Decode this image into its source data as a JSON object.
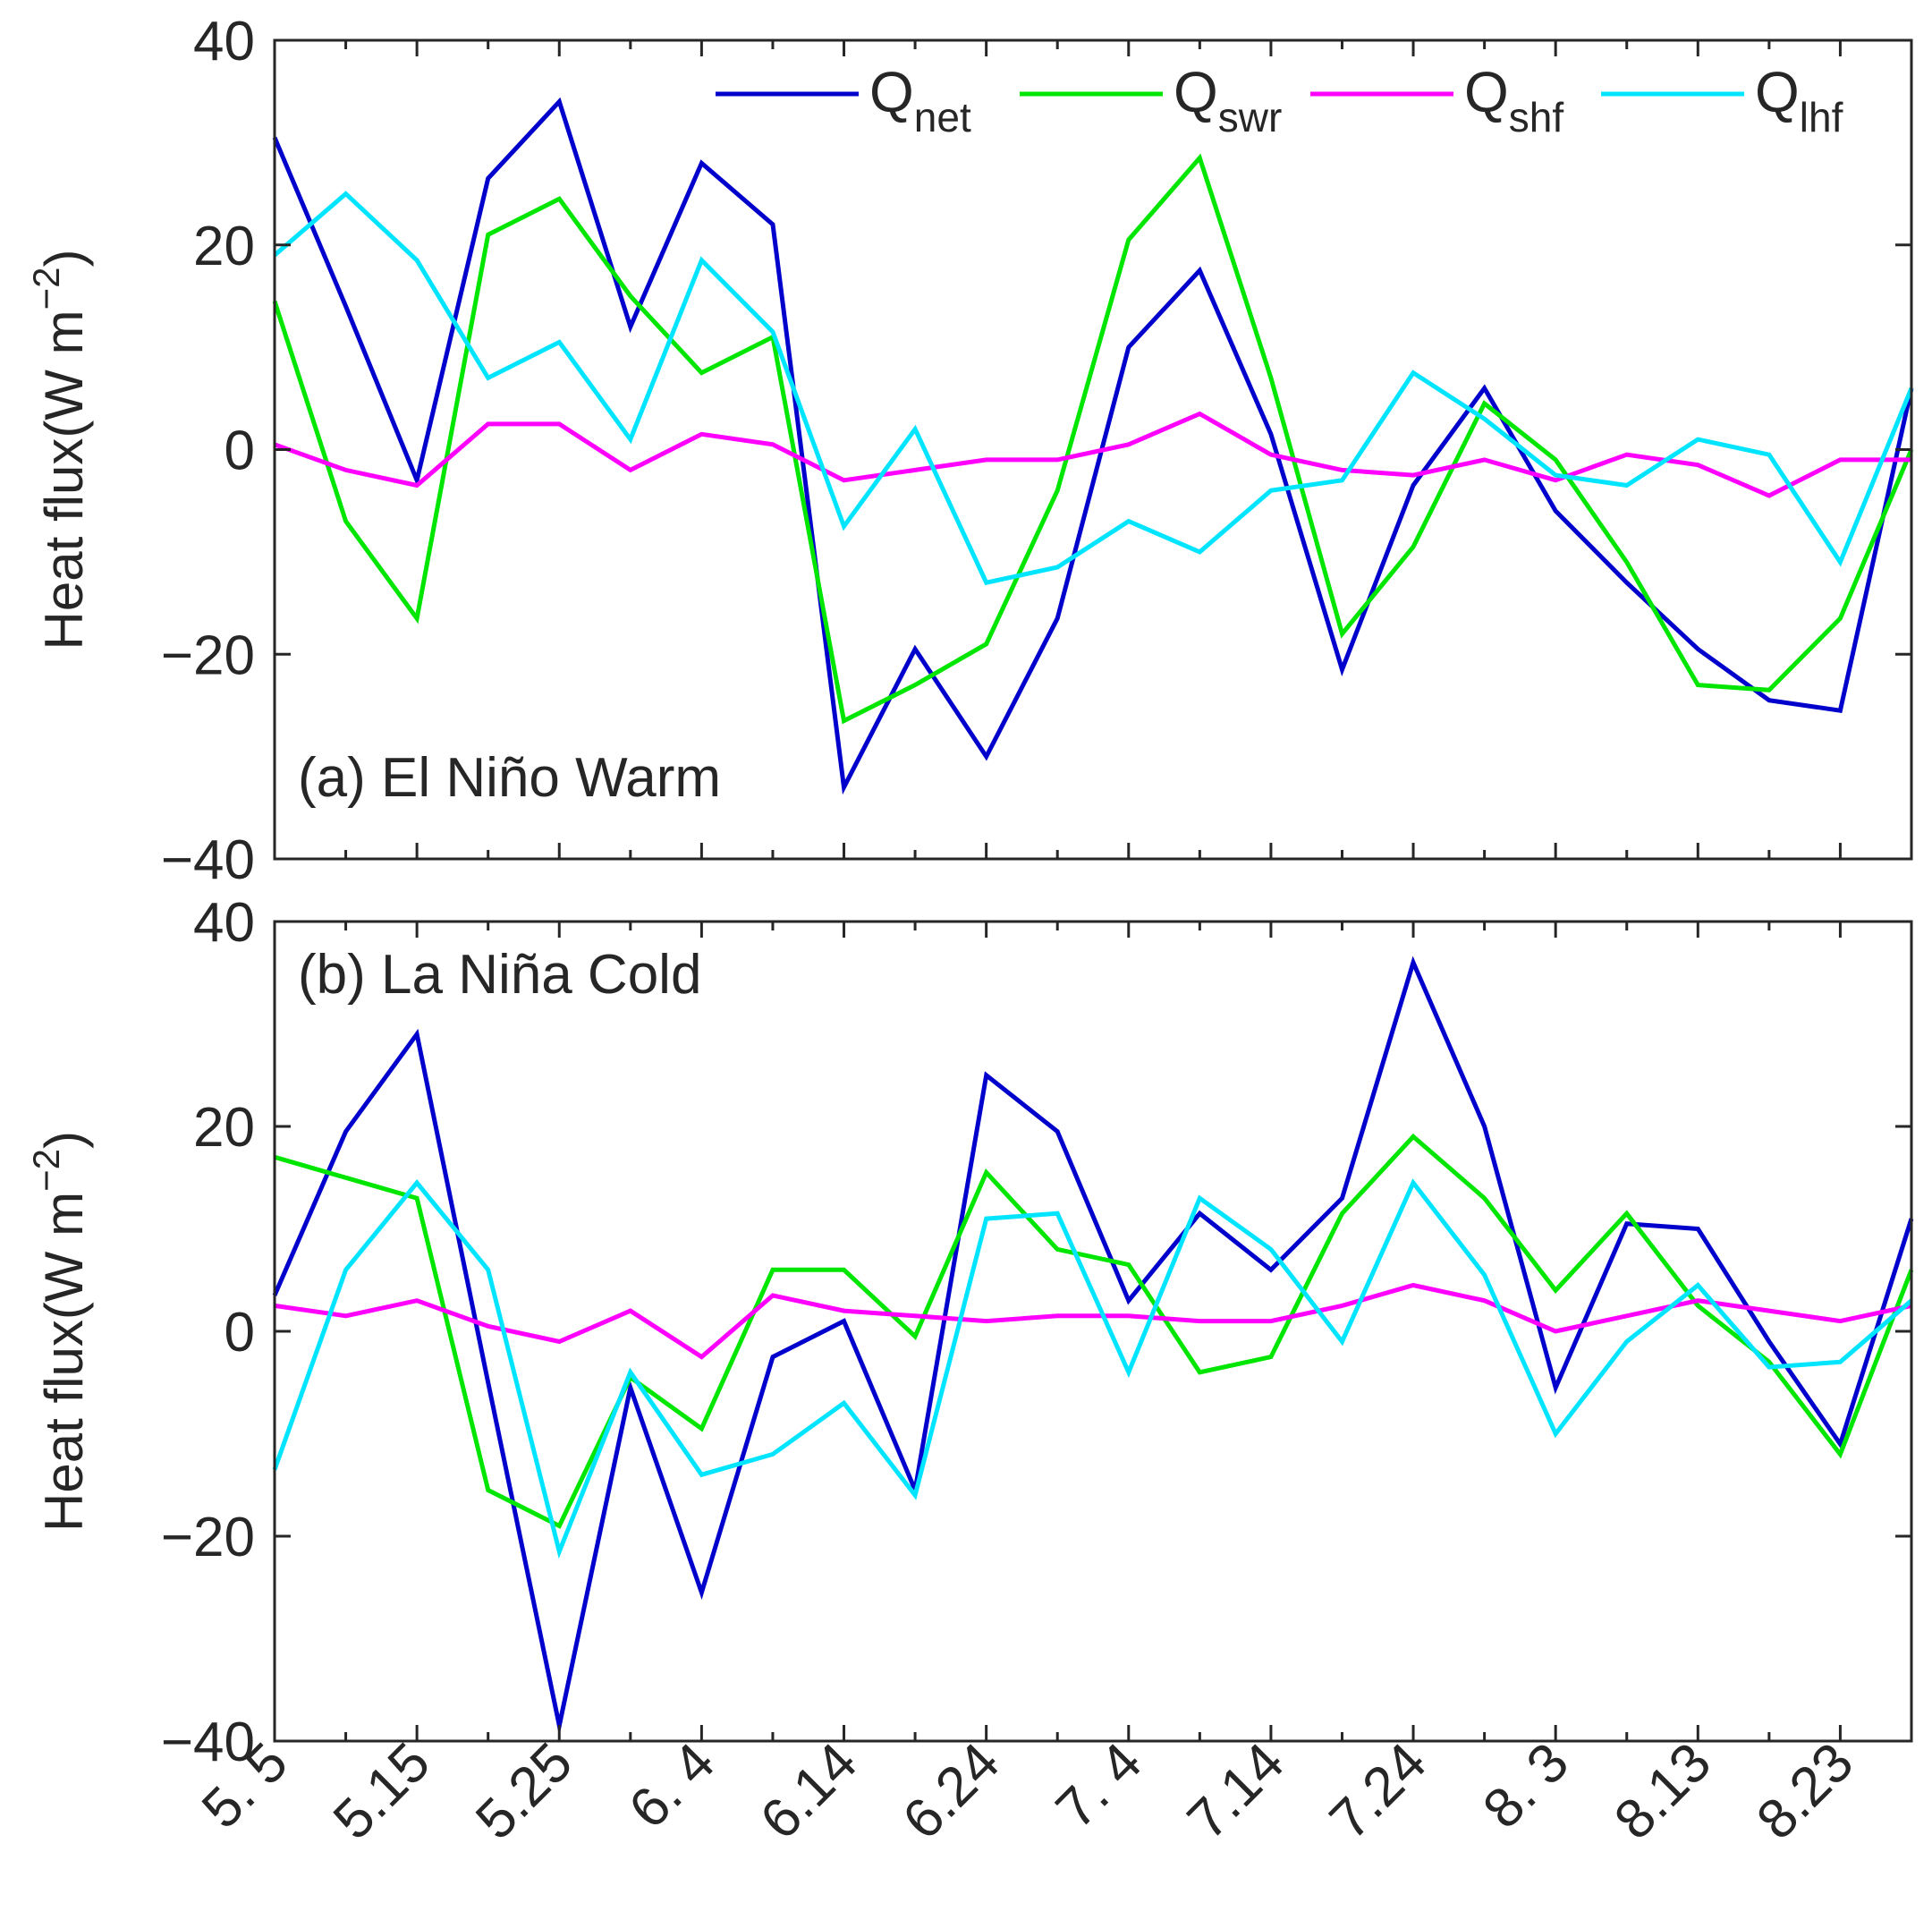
{
  "chart_data": {
    "type": "line",
    "shared_x": {
      "x": [
        0,
        1,
        2,
        3,
        4,
        5,
        6,
        7,
        8,
        9,
        10,
        11,
        12,
        13,
        14,
        15,
        16,
        17,
        18,
        19,
        20,
        21,
        22,
        23
      ],
      "xlim": [
        0,
        23
      ],
      "tick_positions": [
        0,
        2,
        4,
        6,
        8,
        10,
        12,
        14,
        16,
        18,
        20,
        22
      ],
      "tick_labels": [
        "5. 5",
        "5.15",
        "5.25",
        "6. 4",
        "6.14",
        "6.24",
        "7. 4",
        "7.14",
        "7.24",
        "8. 3",
        "8.13",
        "8.23"
      ]
    },
    "legend": [
      {
        "key": "net",
        "base": "Q",
        "sub": "net",
        "color": "#0000CC"
      },
      {
        "key": "swr",
        "base": "Q",
        "sub": "swr",
        "color": "#00E600"
      },
      {
        "key": "shf",
        "base": "Q",
        "sub": "shf",
        "color": "#FF00FF"
      },
      {
        "key": "lhf",
        "base": "Q",
        "sub": "lhf",
        "color": "#00E5FF"
      }
    ],
    "panels": [
      {
        "title": "(a) El Niño Warm",
        "ylabel_main": "Heat flux(W m",
        "ylabel_sup": "−2",
        "ylabel_close": ")",
        "ylim": [
          -40,
          40
        ],
        "yticks": [
          40,
          20,
          0,
          -20,
          -40
        ],
        "ytick_labels": [
          "40",
          "20",
          "0",
          "−20",
          "−40"
        ],
        "series": [
          {
            "key": "net",
            "values": [
              30.5,
              14,
              -3,
              26.5,
              34,
              12,
              28,
              22,
              -33,
              -19.5,
              -30,
              -16.5,
              10,
              17.5,
              1.5,
              -21.5,
              -3.5,
              6,
              -6,
              -13,
              -19.5,
              -24.5,
              -25.5,
              6
            ]
          },
          {
            "key": "swr",
            "values": [
              14.5,
              -7,
              -16.5,
              21,
              24.5,
              15,
              7.5,
              11,
              -26.5,
              -23,
              -19,
              -4,
              20.5,
              28.5,
              7,
              -18,
              -9.5,
              4.5,
              -1,
              -11,
              -23,
              -23.5,
              -16.5,
              0
            ]
          },
          {
            "key": "shf",
            "values": [
              0.5,
              -2,
              -3.5,
              2.5,
              2.5,
              -2,
              1.5,
              0.5,
              -3,
              -2,
              -1,
              -1,
              0.5,
              3.5,
              -0.5,
              -2,
              -2.5,
              -1,
              -3,
              -0.5,
              -1.5,
              -4.5,
              -1,
              -1
            ]
          },
          {
            "key": "lhf",
            "values": [
              19,
              25,
              18.5,
              7,
              10.5,
              1,
              18.5,
              11.5,
              -7.5,
              2,
              -13,
              -11.5,
              -7,
              -10,
              -4,
              -3,
              7.5,
              3,
              -2.5,
              -3.5,
              1,
              -0.5,
              -11,
              6
            ]
          }
        ]
      },
      {
        "title": "(b) La Niña Cold",
        "ylabel_main": "Heat flux(W m",
        "ylabel_sup": "−2",
        "ylabel_close": ")",
        "ylim": [
          -40,
          40
        ],
        "yticks": [
          40,
          20,
          0,
          -20,
          -40
        ],
        "ytick_labels": [
          "40",
          "20",
          "0",
          "−20",
          "−40"
        ],
        "series": [
          {
            "key": "net",
            "values": [
              3.5,
              19.5,
              29,
              -5,
              -38.5,
              -5.5,
              -25.5,
              -2.5,
              1,
              -15.5,
              25,
              19.5,
              3,
              11.5,
              6,
              13,
              36,
              20,
              -5.5,
              10.5,
              10,
              -1,
              -11,
              11
            ]
          },
          {
            "key": "swr",
            "values": [
              17,
              15,
              13,
              -15.5,
              -19,
              -4.5,
              -9.5,
              6,
              6,
              -0.5,
              15.5,
              8,
              6.5,
              -4,
              -2.5,
              11.5,
              19,
              13,
              4,
              11.5,
              2.5,
              -3,
              -12,
              6
            ]
          },
          {
            "key": "shf",
            "values": [
              2.5,
              1.5,
              3,
              0.5,
              -1,
              2,
              -2.5,
              3.5,
              2,
              1.5,
              1,
              1.5,
              1.5,
              1,
              1,
              2.5,
              4.5,
              3,
              0,
              1.5,
              3,
              2,
              1,
              2.5
            ]
          },
          {
            "key": "lhf",
            "values": [
              -13.5,
              6,
              14.5,
              6,
              -21.5,
              -4,
              -14,
              -12,
              -7,
              -16,
              11,
              11.5,
              -4,
              13,
              8,
              -1,
              14.5,
              5.5,
              -10,
              -1,
              4.5,
              -3.5,
              -3,
              3
            ]
          }
        ]
      }
    ]
  }
}
